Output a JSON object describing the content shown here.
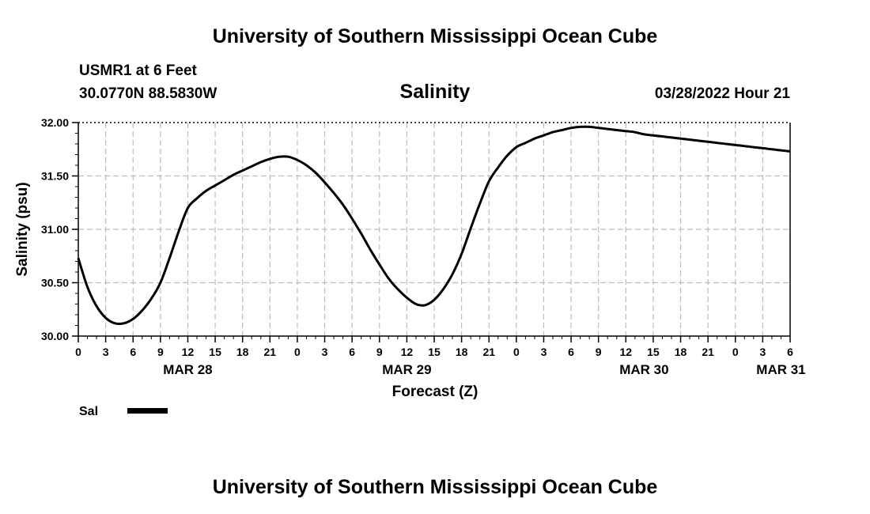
{
  "header": {
    "title": "University of Southern Mississippi Ocean Cube",
    "station": "USMR1 at 6 Feet",
    "location": "30.0770N  88.5830W",
    "datetime": "03/28/2022 Hour 21"
  },
  "footer": {
    "title": "University of Southern Mississippi Ocean Cube"
  },
  "legend": {
    "label": "Sal"
  },
  "chart_data": {
    "type": "line",
    "title": "Salinity",
    "xlabel": "Forecast (Z)",
    "ylabel": "Salinity (psu)",
    "ylim": [
      30.0,
      32.0
    ],
    "xlim": [
      0,
      78
    ],
    "x_unit": "hours from MAR 28 00Z",
    "y_ticks": [
      "30.00",
      "30.50",
      "31.00",
      "31.50",
      "32.00"
    ],
    "x_tick_labels": [
      "0",
      "3",
      "6",
      "9",
      "12",
      "15",
      "18",
      "21",
      "0",
      "3",
      "6",
      "9",
      "12",
      "15",
      "18",
      "21",
      "0",
      "3",
      "6",
      "9",
      "12",
      "15",
      "18",
      "21",
      "0",
      "3",
      "6"
    ],
    "date_labels": [
      {
        "label": "MAR 28",
        "hour": 12
      },
      {
        "label": "MAR 29",
        "hour": 36
      },
      {
        "label": "MAR 30",
        "hour": 62
      },
      {
        "label": "MAR 31",
        "hour": 77
      }
    ],
    "grid": true,
    "series": [
      {
        "name": "Sal",
        "x": [
          0,
          1,
          2,
          3,
          4,
          5,
          6,
          7,
          8,
          9,
          10,
          11,
          12,
          13,
          14,
          15,
          16,
          17,
          18,
          19,
          20,
          21,
          22,
          23,
          24,
          25,
          26,
          27,
          28,
          29,
          30,
          31,
          32,
          33,
          34,
          35,
          36,
          37,
          38,
          39,
          40,
          41,
          42,
          43,
          44,
          45,
          46,
          47,
          48,
          49,
          50,
          51,
          52,
          53,
          54,
          55,
          56,
          57,
          58,
          59,
          60,
          61,
          62,
          63,
          64,
          65,
          66,
          67,
          68,
          69,
          70,
          71,
          72,
          73,
          74,
          75,
          76,
          77,
          78
        ],
        "values": [
          30.73,
          30.46,
          30.28,
          30.17,
          30.12,
          30.12,
          30.16,
          30.24,
          30.35,
          30.5,
          30.73,
          30.98,
          31.2,
          31.29,
          31.36,
          31.41,
          31.46,
          31.51,
          31.55,
          31.59,
          31.63,
          31.66,
          31.68,
          31.68,
          31.65,
          31.6,
          31.53,
          31.44,
          31.34,
          31.23,
          31.1,
          30.96,
          30.81,
          30.67,
          30.54,
          30.44,
          30.36,
          30.3,
          30.29,
          30.34,
          30.44,
          30.58,
          30.77,
          31.01,
          31.24,
          31.45,
          31.58,
          31.69,
          31.77,
          31.81,
          31.85,
          31.88,
          31.91,
          31.93,
          31.95,
          31.96,
          31.96,
          31.95,
          31.94,
          31.93,
          31.92,
          31.91,
          31.89,
          31.88,
          31.87,
          31.86,
          31.85,
          31.84,
          31.83,
          31.82,
          31.81,
          31.8,
          31.79,
          31.78,
          31.77,
          31.76,
          31.75,
          31.74,
          31.73
        ]
      }
    ]
  }
}
